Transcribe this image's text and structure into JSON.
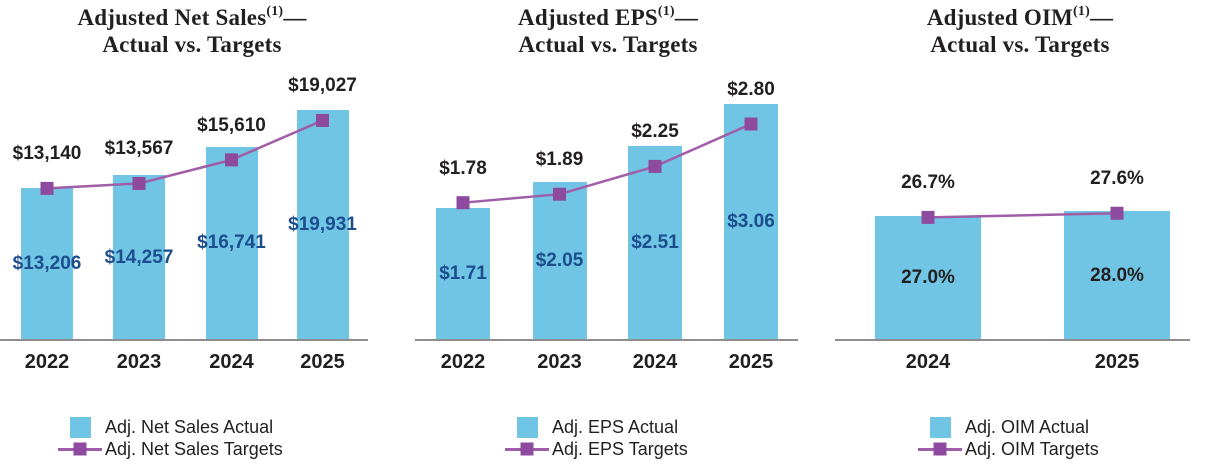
{
  "colors": {
    "bar": "#6fc5e3",
    "line": "#a05da8",
    "marker": "#8d4a9e",
    "navy_label": "#1c4d8d",
    "black_label": "#231f20",
    "axis": "#8e8e8e"
  },
  "chart_data": [
    {
      "type": "bar",
      "title": {
        "name": "Adjusted Net Sales",
        "sup": "(1)",
        "dash": "—",
        "line2": "Actual vs. Targets"
      },
      "categories": [
        "2022",
        "2023",
        "2024",
        "2025"
      ],
      "series": [
        {
          "name": "Adj. Net Sales Actual",
          "type": "bar",
          "values": [
            13206,
            14257,
            16741,
            19931
          ],
          "labels": [
            "$13,206",
            "$14,257",
            "$16,741",
            "$19,931"
          ],
          "label_color": "#1c4d8d"
        },
        {
          "name": "Adj. Net Sales Targets",
          "type": "line",
          "values": [
            13140,
            13567,
            15610,
            19027
          ],
          "labels": [
            "$13,140",
            "$13,567",
            "$15,610",
            "$19,027"
          ],
          "label_color": "#231f20"
        }
      ],
      "ylim": [
        0,
        23400
      ],
      "grid": false,
      "legend_position": "bottom",
      "legend": [
        {
          "label": "Adj. Net Sales Actual",
          "swatch": "bar"
        },
        {
          "label": "Adj. Net Sales Targets",
          "swatch": "line"
        }
      ]
    },
    {
      "type": "bar",
      "title": {
        "name": "Adjusted EPS",
        "sup": "(1)",
        "dash": "—",
        "line2": "Actual vs. Targets"
      },
      "categories": [
        "2022",
        "2023",
        "2024",
        "2025"
      ],
      "series": [
        {
          "name": "Adj. EPS Actual",
          "type": "bar",
          "values": [
            1.71,
            2.05,
            2.51,
            3.06
          ],
          "labels": [
            "$1.71",
            "$2.05",
            "$2.51",
            "$3.06"
          ],
          "label_color": "#1c4d8d"
        },
        {
          "name": "Adj. EPS Targets",
          "type": "line",
          "values": [
            1.78,
            1.89,
            2.25,
            2.8
          ],
          "labels": [
            "$1.78",
            "$1.89",
            "$2.25",
            "$2.80"
          ],
          "label_color": "#231f20"
        }
      ],
      "ylim": [
        0,
        3.5
      ],
      "grid": false,
      "legend_position": "bottom",
      "legend": [
        {
          "label": "Adj. EPS Actual",
          "swatch": "bar"
        },
        {
          "label": "Adj. EPS Targets",
          "swatch": "line"
        }
      ]
    },
    {
      "type": "bar",
      "title": {
        "name": "Adjusted OIM",
        "sup": "(1)",
        "dash": "—",
        "line2": "Actual vs. Targets"
      },
      "categories": [
        "2024",
        "2025"
      ],
      "series": [
        {
          "name": "Adj. OIM Actual",
          "type": "bar",
          "values": [
            27.0,
            28.0
          ],
          "labels": [
            "27.0%",
            "28.0%"
          ],
          "label_color": "#231f20"
        },
        {
          "name": "Adj. OIM Targets",
          "type": "line",
          "values": [
            26.7,
            27.6
          ],
          "labels": [
            "26.7%",
            "27.6%"
          ],
          "label_color": "#231f20"
        }
      ],
      "ylim": [
        0,
        58.8
      ],
      "grid": false,
      "legend_position": "bottom",
      "legend": [
        {
          "label": "Adj. OIM Actual",
          "swatch": "bar"
        },
        {
          "label": "Adj. OIM Targets",
          "swatch": "line"
        }
      ]
    }
  ]
}
